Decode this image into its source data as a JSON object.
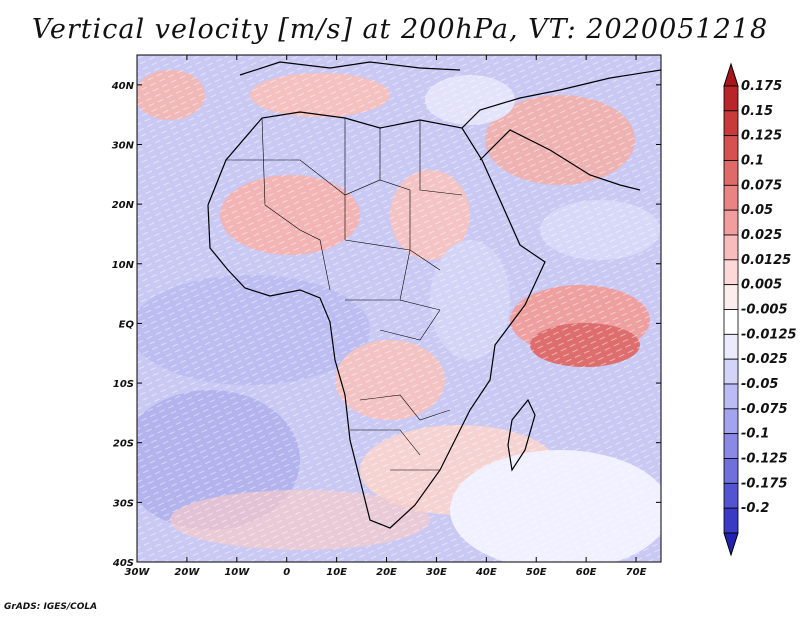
{
  "title": "Vertical velocity [m/s] at 200hPa, VT: 2020051218",
  "credit": "GrADS: IGES/COLA",
  "map": {
    "lon_range": [
      -30,
      75
    ],
    "lat_range": [
      -40,
      45
    ],
    "lat_ticks": [
      {
        "lat": 40,
        "label": "40N"
      },
      {
        "lat": 30,
        "label": "30N"
      },
      {
        "lat": 20,
        "label": "20N"
      },
      {
        "lat": 10,
        "label": "10N"
      },
      {
        "lat": 0,
        "label": "EQ"
      },
      {
        "lat": -10,
        "label": "10S"
      },
      {
        "lat": -20,
        "label": "20S"
      },
      {
        "lat": -30,
        "label": "30S"
      },
      {
        "lat": -40,
        "label": "40S"
      }
    ],
    "lon_ticks": [
      {
        "lon": -30,
        "label": "30W"
      },
      {
        "lon": -20,
        "label": "20W"
      },
      {
        "lon": -10,
        "label": "10W"
      },
      {
        "lon": 0,
        "label": "0"
      },
      {
        "lon": 10,
        "label": "10E"
      },
      {
        "lon": 20,
        "label": "20E"
      },
      {
        "lon": 30,
        "label": "30E"
      },
      {
        "lon": 40,
        "label": "40E"
      },
      {
        "lon": 50,
        "label": "50E"
      },
      {
        "lon": 60,
        "label": "60E"
      },
      {
        "lon": 70,
        "label": "70E"
      }
    ]
  },
  "colorbar": {
    "levels": [
      {
        "label": "0.175",
        "color": "#b8262a"
      },
      {
        "label": "0.15",
        "color": "#c93a3a"
      },
      {
        "label": "0.125",
        "color": "#d65252"
      },
      {
        "label": "0.1",
        "color": "#e06a6a"
      },
      {
        "label": "0.075",
        "color": "#ea8484"
      },
      {
        "label": "0.05",
        "color": "#f29e9e"
      },
      {
        "label": "0.025",
        "color": "#f8bcbc"
      },
      {
        "label": "0.0125",
        "color": "#fcd8d8"
      },
      {
        "label": "0.005",
        "color": "#fdeeee"
      },
      {
        "label": "-0.005",
        "color": "#ffffff"
      },
      {
        "label": "-0.0125",
        "color": "#ebebfd"
      },
      {
        "label": "-0.025",
        "color": "#d4d4f9"
      },
      {
        "label": "-0.05",
        "color": "#bcbcf4"
      },
      {
        "label": "-0.075",
        "color": "#a3a3ee"
      },
      {
        "label": "-0.1",
        "color": "#8a8ae6"
      },
      {
        "label": "-0.125",
        "color": "#7070dd"
      },
      {
        "label": "-0.175",
        "color": "#5454d2"
      },
      {
        "label": "-0.2",
        "color": "#3a3ac4"
      }
    ],
    "top_color": "#a8161c",
    "bottom_color": "#2222b0"
  }
}
